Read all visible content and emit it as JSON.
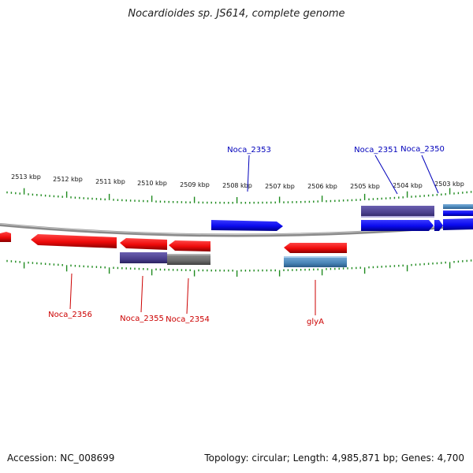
{
  "title": "Nocardioides sp. JS614, complete genome",
  "footer": {
    "accession": "Accession: NC_008699",
    "topology": "Topology: circular; Length: 4,985,871 bp; Genes: 4,700"
  },
  "colors": {
    "backbone": "#8a8a8a",
    "ticks": "#1e8a1e",
    "forward_gene": "#0a0aee",
    "reverse_gene": "#ee0a0a",
    "forward_label": "#0000bb",
    "reverse_label": "#cc0000",
    "purple_feature": "#4a3f8c",
    "steel_feature": "#4a86b8",
    "gray_feature": "#6c6c6c"
  },
  "kbp_labels": [
    "2513 kbp",
    "2512 kbp",
    "2511 kbp",
    "2510 kbp",
    "2509 kbp",
    "2508 kbp",
    "2507 kbp",
    "2506 kbp",
    "2505 kbp",
    "2504 kbp",
    "2503 kbp"
  ],
  "gene_labels": {
    "forward": [
      "Noca_2353",
      "Noca_2351",
      "Noca_2350"
    ],
    "reverse": [
      "Noca_2356",
      "Noca_2355",
      "Noca_2354",
      "glyA"
    ]
  }
}
